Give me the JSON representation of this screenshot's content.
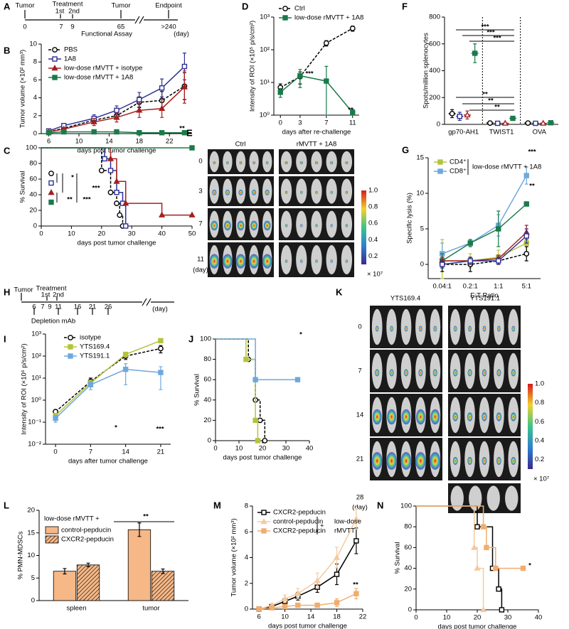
{
  "panel_labels": [
    "A",
    "B",
    "C",
    "D",
    "E",
    "F",
    "G",
    "H",
    "I",
    "J",
    "K",
    "L",
    "M",
    "N"
  ],
  "timeline_a": [
    "Tumor",
    "Treatment",
    "1st",
    "2nd",
    "Tumor",
    "Endpoint",
    "0",
    "7",
    "9",
    "65",
    ">240",
    "(day)",
    "Functional Assay"
  ],
  "timeline_h": [
    "Tumor",
    "Treatment",
    "1st",
    "2nd",
    "6",
    "7",
    "9",
    "11",
    "16",
    "21",
    "26",
    "Depletion mAb",
    "(day)"
  ],
  "image_e": {
    "columns": [
      "Ctrl",
      "rMVTT + 1A8"
    ],
    "rows": [
      "0",
      "3",
      "7",
      "11",
      "(day)"
    ],
    "colorbar": [
      "1.0",
      "0.8",
      "0.6",
      "0.4",
      "0.2",
      "× 10⁷"
    ]
  },
  "image_k": {
    "columns": [
      "YTS169.4",
      "YTS191.1"
    ],
    "rows": [
      "0",
      "7",
      "14",
      "21",
      "28",
      "(day)"
    ],
    "colorbar": [
      "1.0",
      "0.8",
      "0.6",
      "0.4",
      "0.2",
      "× 10⁷"
    ]
  },
  "chart_data": [
    {
      "type": "line",
      "x_label": "days post tumor challenge",
      "y_label": "Tumor volume (×10² mm³)",
      "x": [
        6,
        8,
        12,
        15,
        18,
        21,
        24
      ],
      "xlim": [
        5,
        25
      ],
      "xticks": [
        6,
        10,
        14,
        18,
        22
      ],
      "ylim": [
        0,
        10
      ],
      "yticks": [
        0,
        2,
        4,
        6,
        8,
        10
      ],
      "series": [
        {
          "name": "PBS",
          "color": "#000000",
          "dash": true,
          "marker": "circle",
          "filled": false,
          "values": [
            0.2,
            0.6,
            1.5,
            2.0,
            3.5,
            3.7,
            5.3
          ],
          "errors": [
            0.05,
            0.1,
            0.3,
            0.3,
            0.6,
            1.0,
            1.5
          ]
        },
        {
          "name": "1A8",
          "color": "#2e3192",
          "dash": false,
          "marker": "square",
          "filled": false,
          "values": [
            0.3,
            0.9,
            1.7,
            2.6,
            3.8,
            5.1,
            7.5
          ],
          "errors": [
            0.05,
            0.15,
            0.4,
            0.5,
            0.8,
            1.0,
            1.5
          ]
        },
        {
          "name": "low-dose rMVTT + isotype",
          "color": "#a3201f",
          "dash": false,
          "marker": "triangle",
          "filled": true,
          "values": [
            0.2,
            0.5,
            1.3,
            1.8,
            2.6,
            2.8,
            5.2
          ],
          "errors": [
            0.05,
            0.1,
            0.4,
            0.5,
            0.8,
            1.0,
            1.8
          ]
        },
        {
          "name": "low-dose rMVTT + 1A8",
          "color": "#1b7a4a",
          "dash": false,
          "marker": "square",
          "filled": true,
          "values": [
            0.1,
            0.2,
            0.2,
            0.2,
            0.1,
            0.1,
            0.1
          ],
          "errors": [
            0.02,
            0.05,
            0.05,
            0.05,
            0.05,
            0.05,
            0.05
          ]
        }
      ],
      "annotations": [
        "**"
      ]
    },
    {
      "type": "step",
      "x_label": "days post tumor challenge",
      "y_label": "% Survival",
      "xlim": [
        0,
        50
      ],
      "xticks": [
        0,
        10,
        20,
        30,
        40,
        50
      ],
      "ylim": [
        0,
        100
      ],
      "yticks": [
        0,
        20,
        40,
        60,
        80,
        100
      ],
      "series": [
        {
          "color": "#000000",
          "dash": true,
          "marker": "circle",
          "filled": false,
          "x": [
            0,
            20,
            23,
            25,
            26,
            27
          ],
          "values": [
            100,
            71,
            43,
            29,
            14,
            0
          ]
        },
        {
          "color": "#2e3192",
          "dash": false,
          "marker": "square",
          "filled": false,
          "x": [
            0,
            21,
            23,
            25,
            27,
            28
          ],
          "values": [
            100,
            86,
            71,
            43,
            29,
            0
          ]
        },
        {
          "color": "#a3201f",
          "dash": false,
          "marker": "triangle",
          "filled": true,
          "x": [
            0,
            23,
            25,
            28,
            40,
            50
          ],
          "values": [
            100,
            86,
            57,
            29,
            14,
            14
          ]
        },
        {
          "color": "#1b7a4a",
          "dash": false,
          "marker": "square",
          "filled": true,
          "x": [
            0,
            50
          ],
          "values": [
            100,
            100
          ]
        }
      ],
      "annotations": [
        "*",
        "***",
        "**",
        "***"
      ]
    },
    {
      "type": "line",
      "x_label": "days after re-challenge",
      "y_label": "Intensity of ROI (×10⁵ p/s/cm²)",
      "ylog": true,
      "x": [
        0,
        3,
        7,
        11
      ],
      "xlim": [
        -1,
        12
      ],
      "xticks": [
        0,
        3,
        7,
        11
      ],
      "ylim": [
        1,
        1000
      ],
      "yticks": [
        {
          "value": 1,
          "label": "10⁰"
        },
        {
          "value": 10,
          "label": "10¹"
        },
        {
          "value": 100,
          "label": "10²"
        },
        {
          "value": 1000,
          "label": "10³"
        }
      ],
      "series": [
        {
          "name": "Ctrl",
          "color": "#000000",
          "dash": true,
          "marker": "circle",
          "filled": false,
          "values": [
            7,
            15,
            160,
            450
          ],
          "errors": [
            2,
            6,
            30,
            80
          ]
        },
        {
          "name": "low-dose rMVTT + 1A8",
          "color": "#1b7a4a",
          "dash": false,
          "marker": "square",
          "filled": true,
          "values": [
            5,
            16,
            11,
            1.2
          ],
          "errors": [
            1.5,
            9,
            20,
            0.3
          ]
        }
      ],
      "annotations": [
        "***",
        "**"
      ]
    },
    {
      "type": "dot",
      "y_label": "Spots/million splenocytes",
      "categories": [
        "gp70-AH1",
        "TWIST1",
        "OVA"
      ],
      "ylim": [
        0,
        800
      ],
      "yticks": [
        0,
        200,
        400,
        600,
        800
      ],
      "series": [
        {
          "color": "#000000",
          "marker": "circle",
          "filled": false,
          "values": [
            80,
            10,
            10
          ],
          "errors": [
            30,
            3,
            3
          ]
        },
        {
          "color": "#2e3192",
          "marker": "square",
          "filled": false,
          "values": [
            60,
            8,
            8
          ],
          "errors": [
            30,
            3,
            3
          ]
        },
        {
          "color": "#a3201f",
          "marker": "triangle",
          "filled": false,
          "values": [
            70,
            8,
            8
          ],
          "errors": [
            30,
            3,
            3
          ]
        },
        {
          "color": "#1b7a4a",
          "marker": "square",
          "filled": true,
          "values": [
            530,
            45,
            12
          ],
          "errors": [
            70,
            10,
            4
          ]
        }
      ],
      "annotations": [
        "***",
        "***",
        "***",
        "**",
        "**",
        "**"
      ]
    },
    {
      "type": "line",
      "x_label": "E:T Ratio",
      "y_label": "Specific lysis (%)",
      "categories": [
        "0.04:1",
        "0.2:1",
        "1:1",
        "5:1"
      ],
      "ylim": [
        -2,
        15
      ],
      "yticks": [
        0,
        5,
        10,
        15
      ],
      "legend_title": "low-dose rMVTT + 1A8",
      "series": [
        {
          "name": "CD4⁺",
          "color": "#b5c33a",
          "dash": false,
          "marker": "square",
          "filled": true,
          "values": [
            0.5,
            0.5,
            1,
            3
          ],
          "errors": [
            3,
            1,
            1,
            1.5
          ]
        },
        {
          "name": "CD8⁺",
          "color": "#6fa8dc",
          "dash": false,
          "marker": "square",
          "filled": true,
          "values": [
            1.5,
            3,
            5.5,
            12.5
          ],
          "errors": [
            1.5,
            0.5,
            1.5,
            1.2
          ]
        },
        {
          "color": "#1b7a4a",
          "dash": false,
          "marker": "square",
          "filled": true,
          "values": [
            0.5,
            3,
            5,
            8.5
          ],
          "errors": [
            1,
            0.5,
            2.5,
            0.3
          ]
        },
        {
          "color": "#000000",
          "dash": true,
          "marker": "circle",
          "filled": false,
          "values": [
            0,
            0,
            0.5,
            1.5
          ],
          "errors": [
            1,
            1,
            0.5,
            1
          ]
        },
        {
          "color": "#a3201f",
          "dash": false,
          "marker": "triangle",
          "filled": true,
          "values": [
            0.5,
            0.5,
            0.8,
            4.5
          ],
          "errors": [
            0.5,
            0.5,
            0.5,
            1
          ]
        },
        {
          "color": "#2e3192",
          "dash": false,
          "marker": "square",
          "filled": false,
          "values": [
            0,
            0.5,
            0.5,
            4
          ],
          "errors": [
            0.5,
            0.5,
            0.5,
            1
          ]
        }
      ],
      "annotations": [
        "***",
        "**"
      ]
    },
    {
      "type": "line",
      "x_label": "days after tumor challenge",
      "y_label": "Intensity of ROI (×10⁶ p/s/cm²)",
      "ylog": true,
      "x": [
        0,
        7,
        14,
        21
      ],
      "xlim": [
        -2,
        23
      ],
      "xticks": [
        0,
        7,
        14,
        21
      ],
      "ylim": [
        0.01,
        1000
      ],
      "yticks": [
        {
          "value": 0.01,
          "label": "10⁻²"
        },
        {
          "value": 0.1,
          "label": "10⁻¹"
        },
        {
          "value": 1,
          "label": "10⁰"
        },
        {
          "value": 10,
          "label": "10¹"
        },
        {
          "value": 100,
          "label": "10²"
        },
        {
          "value": 1000,
          "label": "10³"
        }
      ],
      "series": [
        {
          "name": "isotype",
          "color": "#000000",
          "dash": true,
          "marker": "circle",
          "filled": false,
          "values": [
            0.3,
            7,
            100,
            220
          ],
          "errors": [
            0.05,
            3,
            30,
            80
          ]
        },
        {
          "name": "YTS169.4",
          "color": "#b5c33a",
          "dash": false,
          "marker": "square",
          "filled": true,
          "values": [
            0.2,
            6,
            120,
            500
          ],
          "errors": [
            0.05,
            2,
            30,
            100
          ]
        },
        {
          "name": "YTS191.1",
          "color": "#6fa8dc",
          "dash": false,
          "marker": "square",
          "filled": true,
          "values": [
            0.15,
            5,
            25,
            18
          ],
          "errors": [
            0.05,
            2,
            20,
            15
          ]
        }
      ],
      "annotations": [
        "*",
        "***"
      ]
    },
    {
      "type": "step",
      "x_label": "days post tumor challenge",
      "y_label": "% Survival",
      "xlim": [
        0,
        40
      ],
      "xticks": [
        0,
        10,
        20,
        30,
        40
      ],
      "ylim": [
        0,
        100
      ],
      "yticks": [
        0,
        20,
        40,
        60,
        80,
        100
      ],
      "series": [
        {
          "color": "#000000",
          "dash": true,
          "marker": "circle",
          "filled": false,
          "x": [
            0,
            14,
            17,
            19,
            21
          ],
          "values": [
            100,
            80,
            40,
            20,
            0
          ]
        },
        {
          "color": "#b5c33a",
          "dash": false,
          "marker": "square",
          "filled": true,
          "x": [
            0,
            13,
            17,
            18
          ],
          "values": [
            100,
            80,
            20,
            0
          ]
        },
        {
          "color": "#6fa8dc",
          "dash": false,
          "marker": "square",
          "filled": true,
          "x": [
            0,
            17,
            35
          ],
          "values": [
            100,
            60,
            60
          ]
        }
      ],
      "annotations": [
        "*"
      ]
    },
    {
      "type": "bar",
      "y_label": "% PMN-MDSCs",
      "categories": [
        "spleen",
        "tumor"
      ],
      "ylim": [
        0,
        20
      ],
      "yticks": [
        0,
        5,
        10,
        15,
        20
      ],
      "legend_title": "low-dose rMVTT +",
      "series": [
        {
          "name": "control-pepducin",
          "color": "#f6b887",
          "hatch": false,
          "values": [
            6.5,
            15.7
          ],
          "errors": [
            0.6,
            1.5
          ]
        },
        {
          "name": "CXCR2-pepducin",
          "color": "#f6b887",
          "hatch": true,
          "values": [
            7.9,
            6.5
          ],
          "errors": [
            0.4,
            0.5
          ]
        }
      ],
      "annotations": [
        "**"
      ]
    },
    {
      "type": "line",
      "x_label": "days post tumor challenge",
      "y_label": "Tumor volume (×10² mm³)",
      "x": [
        6,
        8,
        10,
        12,
        15,
        18,
        21
      ],
      "xlim": [
        5,
        22
      ],
      "xticks": [
        6,
        10,
        14,
        18,
        22
      ],
      "ylim": [
        0,
        8
      ],
      "yticks": [
        0,
        2,
        4,
        6,
        8
      ],
      "legend_note": [
        "+",
        "low-dose",
        "rMVTT"
      ],
      "series": [
        {
          "name": "CXCR2-pepducin",
          "color": "#000000",
          "dash": false,
          "marker": "square",
          "filled": false,
          "values": [
            0,
            0.2,
            0.6,
            1.0,
            1.7,
            2.7,
            5.3
          ],
          "errors": [
            0.05,
            0.1,
            0.2,
            0.3,
            0.4,
            0.8,
            1.0
          ]
        },
        {
          "name": "control-pepducin",
          "color": "#f5c9a0",
          "dash": false,
          "marker": "triangle",
          "filled": true,
          "values": [
            0,
            0.3,
            0.8,
            1.2,
            2.2,
            4.0,
            7.0
          ],
          "errors": [
            0.05,
            0.1,
            0.3,
            0.4,
            0.6,
            0.8,
            0.8
          ]
        },
        {
          "name": "CXCR2-pepducin",
          "color": "#f0ad6e",
          "dash": false,
          "marker": "square",
          "filled": true,
          "values": [
            0,
            0.1,
            0.2,
            0.3,
            0.3,
            0.5,
            1.2
          ],
          "errors": [
            0.05,
            0.05,
            0.1,
            0.1,
            0.1,
            0.3,
            0.4
          ]
        }
      ],
      "annotations": [
        "**"
      ]
    },
    {
      "type": "step",
      "x_label": "days post tumor challenge",
      "y_label": "% Survival",
      "xlim": [
        0,
        40
      ],
      "xticks": [
        0,
        10,
        20,
        30,
        40
      ],
      "ylim": [
        0,
        100
      ],
      "yticks": [
        0,
        20,
        40,
        60,
        80,
        100
      ],
      "series": [
        {
          "color": "#000000",
          "dash": false,
          "marker": "square",
          "filled": false,
          "x": [
            0,
            20,
            25,
            27,
            28
          ],
          "values": [
            100,
            80,
            40,
            20,
            0
          ]
        },
        {
          "color": "#f5c9a0",
          "dash": false,
          "marker": "triangle",
          "filled": true,
          "x": [
            0,
            19,
            20,
            22
          ],
          "values": [
            100,
            60,
            40,
            0
          ]
        },
        {
          "color": "#f0ad6e",
          "dash": false,
          "marker": "square",
          "filled": true,
          "x": [
            0,
            22,
            23,
            26,
            35
          ],
          "values": [
            100,
            80,
            60,
            40,
            40
          ]
        }
      ],
      "annotations": [
        "*"
      ]
    }
  ]
}
